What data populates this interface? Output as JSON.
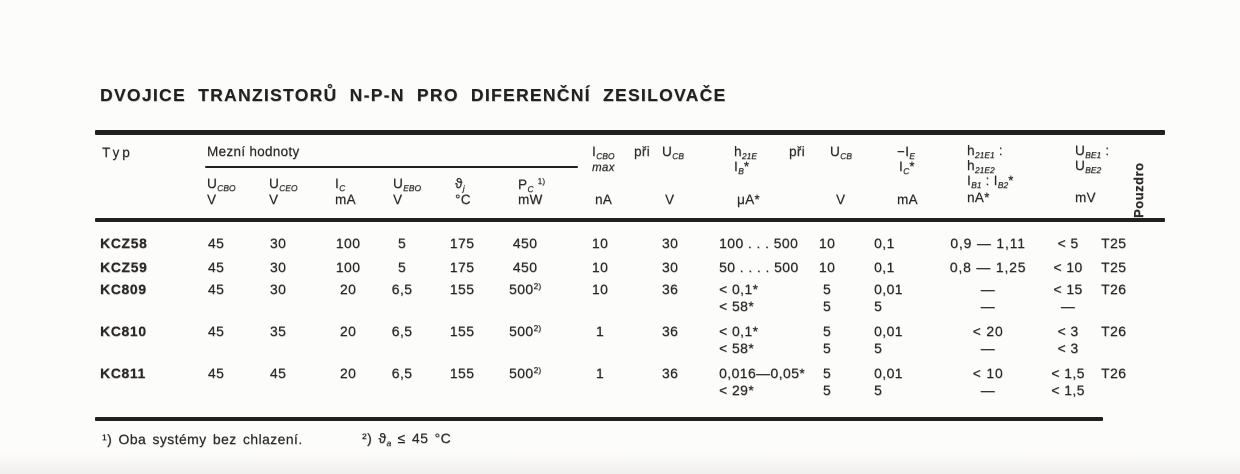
{
  "title": "DVOJICE TRANZISTORŮ N-P-N PRO DIFERENČNÍ ZESILOVAČE",
  "table": {
    "header": {
      "typ": "Typ",
      "mezni_hodnoty": "Mezní hodnoty",
      "limit_cols": [
        {
          "sym": [
            [
              "t",
              "U"
            ],
            [
              "sub",
              "CBO"
            ]
          ],
          "unit": "V"
        },
        {
          "sym": [
            [
              "t",
              "U"
            ],
            [
              "sub",
              "CEO"
            ]
          ],
          "unit": "V"
        },
        {
          "sym": [
            [
              "t",
              "I"
            ],
            [
              "sub",
              "C"
            ]
          ],
          "unit": "mA"
        },
        {
          "sym": [
            [
              "t",
              "U"
            ],
            [
              "sub",
              "EBO"
            ]
          ],
          "unit": "V"
        },
        {
          "sym": [
            [
              "t",
              "ϑ"
            ],
            [
              "sub",
              "j"
            ]
          ],
          "unit": "°C"
        },
        {
          "sym": [
            [
              "t",
              "P"
            ],
            [
              "sub",
              "C"
            ],
            [
              "t",
              " "
            ],
            [
              "sup",
              "1)"
            ]
          ],
          "unit": "mW"
        }
      ],
      "icbo": {
        "sym": [
          [
            "t",
            "I"
          ],
          [
            "sub",
            "CBO"
          ]
        ],
        "pri": "při",
        "ucb": [
          [
            "t",
            "U"
          ],
          [
            "sub",
            "CB"
          ]
        ],
        "max": "max",
        "unit_na": "nA",
        "unit_v": "V"
      },
      "h21e": {
        "sym": [
          [
            "t",
            "h"
          ],
          [
            "sub",
            "21E"
          ]
        ],
        "ib": [
          [
            "t",
            "I"
          ],
          [
            "sub",
            "B"
          ],
          [
            "t",
            "*"
          ]
        ],
        "pri": "při",
        "ucb": [
          [
            "t",
            "U"
          ],
          [
            "sub",
            "CB"
          ]
        ],
        "unit_ua": "μA*",
        "unit_v": "V"
      },
      "ie": {
        "line1": [
          [
            "t",
            "−I"
          ],
          [
            "sub",
            "E"
          ]
        ],
        "line2": [
          [
            "t",
            "I"
          ],
          [
            "sub",
            "C"
          ],
          [
            "t",
            "*"
          ]
        ],
        "unit": "mA"
      },
      "ratio": {
        "line1": [
          [
            "t",
            "h"
          ],
          [
            "sub",
            "21E1"
          ],
          [
            "t",
            " :"
          ]
        ],
        "line2": [
          [
            "t",
            "h"
          ],
          [
            "sub",
            "21E2"
          ]
        ],
        "line3": [
          [
            "t",
            "I"
          ],
          [
            "sub",
            "B1"
          ],
          [
            "t",
            " : "
          ],
          [
            "t",
            "I"
          ],
          [
            "sub",
            "B2"
          ],
          [
            "t",
            "*"
          ]
        ],
        "unit": "nA*"
      },
      "ube": {
        "line1": [
          [
            "t",
            "U"
          ],
          [
            "sub",
            "BE1"
          ],
          [
            "t",
            " :"
          ]
        ],
        "line2": [
          [
            "t",
            "U"
          ],
          [
            "sub",
            "BE2"
          ]
        ],
        "unit": "mV"
      },
      "pouzdro": "Pouzdro"
    },
    "rows": [
      {
        "typ": "KCZ58",
        "ucbo": "45",
        "uceo": "30",
        "ic": "100",
        "uebo": "5",
        "theta_j": "175",
        "pc": [
          [
            "t",
            "450"
          ]
        ],
        "icbo": "10",
        "icbo_v": "30",
        "h21e": [
          "100 . . . 500"
        ],
        "ucb": [
          "10"
        ],
        "ie": [
          "0,1"
        ],
        "ratio": [
          "0,9 — 1,11"
        ],
        "ube": [
          "< 5"
        ],
        "pouzdro": "T25"
      },
      {
        "typ": "KCZ59",
        "ucbo": "45",
        "uceo": "30",
        "ic": "100",
        "uebo": "5",
        "theta_j": "175",
        "pc": [
          [
            "t",
            "450"
          ]
        ],
        "icbo": "10",
        "icbo_v": "30",
        "h21e": [
          "50 . . . . 500"
        ],
        "ucb": [
          "10"
        ],
        "ie": [
          "0,1"
        ],
        "ratio": [
          "0,8 — 1,25"
        ],
        "ube": [
          "< 10"
        ],
        "pouzdro": "T25"
      },
      {
        "typ": "KC809",
        "ucbo": "45",
        "uceo": "30",
        "ic": "20",
        "uebo": "6,5",
        "theta_j": "155",
        "pc": [
          [
            "t",
            "500"
          ],
          [
            "sup",
            "2)"
          ]
        ],
        "icbo": "10",
        "icbo_v": "36",
        "h21e": [
          "< 0,1*",
          "< 58*"
        ],
        "ucb": [
          "5",
          "5"
        ],
        "ie": [
          "0,01",
          "5"
        ],
        "ratio": [
          "—",
          "—"
        ],
        "ube": [
          "< 15",
          "—"
        ],
        "pouzdro": "T26"
      },
      {
        "typ": "KC810",
        "ucbo": "45",
        "uceo": "35",
        "ic": "20",
        "uebo": "6,5",
        "theta_j": "155",
        "pc": [
          [
            "t",
            "500"
          ],
          [
            "sup",
            "2)"
          ]
        ],
        "icbo": "1",
        "icbo_v": "36",
        "h21e": [
          "< 0,1*",
          "< 58*"
        ],
        "ucb": [
          "5",
          "5"
        ],
        "ie": [
          "0,01",
          "5"
        ],
        "ratio": [
          "< 20",
          "—"
        ],
        "ube": [
          "< 3",
          "< 3"
        ],
        "pouzdro": "T26"
      },
      {
        "typ": "KC811",
        "ucbo": "45",
        "uceo": "45",
        "ic": "20",
        "uebo": "6,5",
        "theta_j": "155",
        "pc": [
          [
            "t",
            "500"
          ],
          [
            "sup",
            "2)"
          ]
        ],
        "icbo": "1",
        "icbo_v": "36",
        "h21e": [
          "0,016—0,05*",
          "< 29*"
        ],
        "ucb": [
          "5",
          "5"
        ],
        "ie": [
          "0,01",
          "5"
        ],
        "ratio": [
          "< 10",
          "—"
        ],
        "ube": [
          "< 1,5",
          "< 1,5"
        ],
        "pouzdro": "T26"
      }
    ]
  },
  "footnotes": {
    "fn1": "¹) Oba systémy bez chlazení.",
    "fn2": [
      [
        "t",
        "²) "
      ],
      [
        "t",
        "ϑ"
      ],
      [
        "sub",
        "a"
      ],
      [
        "t",
        " ≤ 45 °C"
      ]
    ]
  }
}
